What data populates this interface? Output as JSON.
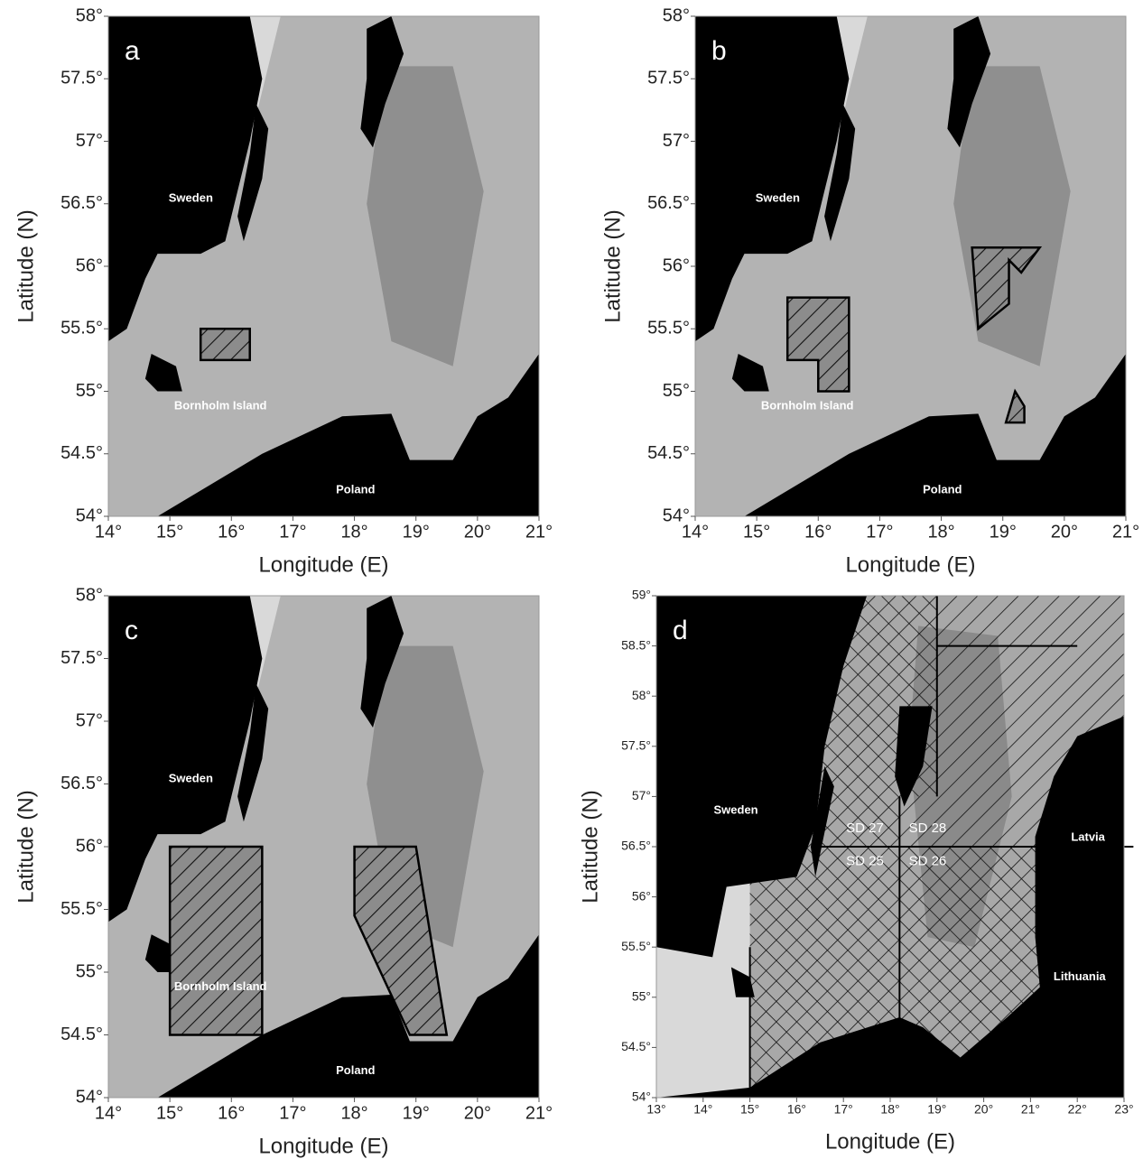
{
  "panels": [
    {
      "letter": "a",
      "x_label": "Longitude (E)",
      "y_label": "Latitude (N)",
      "xticks": [
        {
          "value": 14,
          "label": "14°"
        },
        {
          "value": 15,
          "label": "15°"
        },
        {
          "value": 16,
          "label": "16°"
        },
        {
          "value": 17,
          "label": "17°"
        },
        {
          "value": 18,
          "label": "18°"
        },
        {
          "value": 19,
          "label": "19°"
        },
        {
          "value": 20,
          "label": "20°"
        },
        {
          "value": 21,
          "label": "21°"
        }
      ],
      "yticks": [
        {
          "value": 54,
          "label": "54°"
        },
        {
          "value": 54.5,
          "label": "54.5°"
        },
        {
          "value": 55,
          "label": "55°"
        },
        {
          "value": 55.5,
          "label": "55.5°"
        },
        {
          "value": 56,
          "label": "56°"
        },
        {
          "value": 56.5,
          "label": "56.5°"
        },
        {
          "value": 57,
          "label": "57°"
        },
        {
          "value": 57.5,
          "label": "57.5°"
        },
        {
          "value": 58,
          "label": "58°"
        }
      ],
      "places": [
        "Sweden",
        "Bornholm Island",
        "Poland"
      ]
    },
    {
      "letter": "b",
      "x_label": "Longitude (E)",
      "y_label": "Latitude (N)",
      "xticks": [
        {
          "value": 14,
          "label": "14°"
        },
        {
          "value": 15,
          "label": "15°"
        },
        {
          "value": 16,
          "label": "16°"
        },
        {
          "value": 17,
          "label": "17°"
        },
        {
          "value": 18,
          "label": "18°"
        },
        {
          "value": 19,
          "label": "19°"
        },
        {
          "value": 20,
          "label": "20°"
        },
        {
          "value": 21,
          "label": "21°"
        }
      ],
      "yticks": [
        {
          "value": 54,
          "label": "54°"
        },
        {
          "value": 54.5,
          "label": "54.5°"
        },
        {
          "value": 55,
          "label": "55°"
        },
        {
          "value": 55.5,
          "label": "55.5°"
        },
        {
          "value": 56,
          "label": "56°"
        },
        {
          "value": 56.5,
          "label": "56.5°"
        },
        {
          "value": 57,
          "label": "57°"
        },
        {
          "value": 57.5,
          "label": "57.5°"
        },
        {
          "value": 58,
          "label": "58°"
        }
      ],
      "places": [
        "Sweden",
        "Bornholm Island",
        "Poland"
      ]
    },
    {
      "letter": "c",
      "x_label": "Longitude (E)",
      "y_label": "Latitude (N)",
      "xticks": [
        {
          "value": 14,
          "label": "14°"
        },
        {
          "value": 15,
          "label": "15°"
        },
        {
          "value": 16,
          "label": "16°"
        },
        {
          "value": 17,
          "label": "17°"
        },
        {
          "value": 18,
          "label": "18°"
        },
        {
          "value": 19,
          "label": "19°"
        },
        {
          "value": 20,
          "label": "20°"
        },
        {
          "value": 21,
          "label": "21°"
        }
      ],
      "yticks": [
        {
          "value": 54,
          "label": "54°"
        },
        {
          "value": 54.5,
          "label": "54.5°"
        },
        {
          "value": 55,
          "label": "55°"
        },
        {
          "value": 55.5,
          "label": "55.5°"
        },
        {
          "value": 56,
          "label": "56°"
        },
        {
          "value": 56.5,
          "label": "56.5°"
        },
        {
          "value": 57,
          "label": "57°"
        },
        {
          "value": 57.5,
          "label": "57.5°"
        },
        {
          "value": 58,
          "label": "58°"
        }
      ],
      "places": [
        "Sweden",
        "Bornholm Island",
        "Poland"
      ]
    },
    {
      "letter": "d",
      "x_label": "Longitude (E)",
      "y_label": "Latitude (N)",
      "xticks": [
        {
          "value": 13,
          "label": "13°"
        },
        {
          "value": 14,
          "label": "14°"
        },
        {
          "value": 15,
          "label": "15°"
        },
        {
          "value": 16,
          "label": "16°"
        },
        {
          "value": 17,
          "label": "17°"
        },
        {
          "value": 18,
          "label": "18°"
        },
        {
          "value": 19,
          "label": "19°"
        },
        {
          "value": 20,
          "label": "20°"
        },
        {
          "value": 21,
          "label": "21°"
        },
        {
          "value": 22,
          "label": "22°"
        },
        {
          "value": 23,
          "label": "23°"
        }
      ],
      "yticks": [
        {
          "value": 54,
          "label": "54°"
        },
        {
          "value": 54.5,
          "label": "54.5°"
        },
        {
          "value": 55,
          "label": "55°"
        },
        {
          "value": 55.5,
          "label": "55.5°"
        },
        {
          "value": 56,
          "label": "56°"
        },
        {
          "value": 56.5,
          "label": "56.5°"
        },
        {
          "value": 57,
          "label": "57°"
        },
        {
          "value": 57.5,
          "label": "57.5°"
        },
        {
          "value": 58,
          "label": "58°"
        },
        {
          "value": 58.5,
          "label": "58.5°"
        },
        {
          "value": 59,
          "label": "59°"
        }
      ],
      "places": [
        "Sweden",
        "Latvia",
        "Lithuania",
        "SD 27",
        "SD 28",
        "SD 25",
        "SD 26"
      ]
    }
  ]
}
